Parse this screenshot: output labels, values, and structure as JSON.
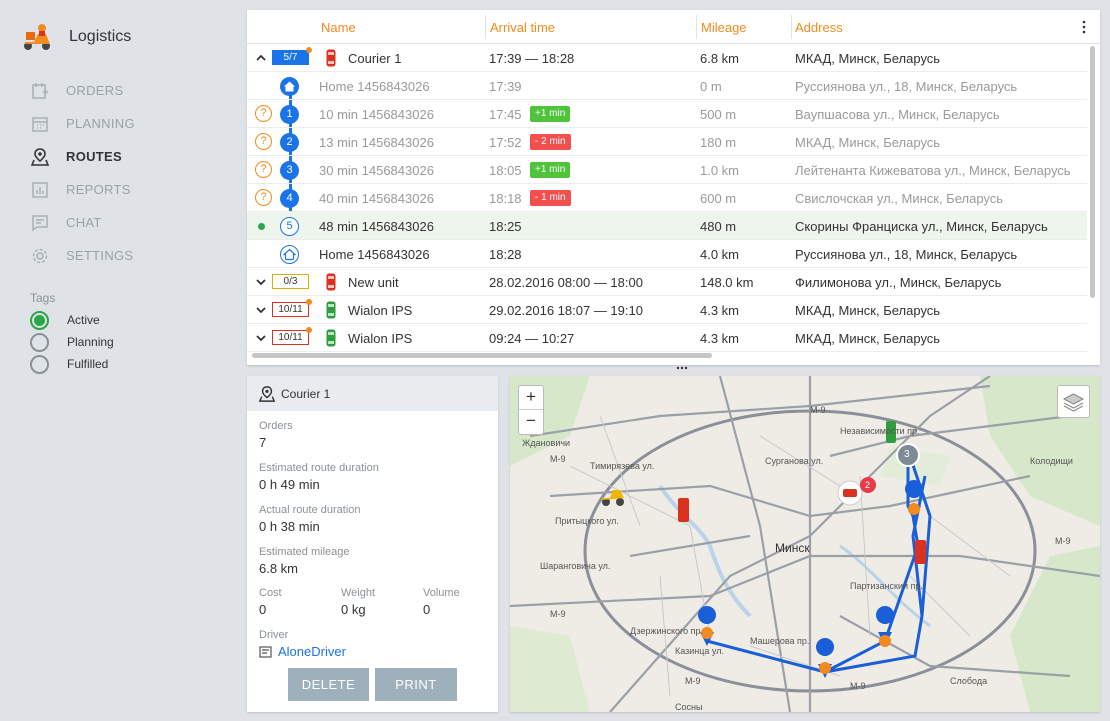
{
  "app": {
    "title": "Logistics"
  },
  "nav": [
    {
      "label": "ORDERS",
      "icon": "orders-icon",
      "active": false
    },
    {
      "label": "PLANNING",
      "icon": "calendar-icon",
      "active": false
    },
    {
      "label": "ROUTES",
      "icon": "route-pin-icon",
      "active": true
    },
    {
      "label": "REPORTS",
      "icon": "chart-icon",
      "active": false
    },
    {
      "label": "CHAT",
      "icon": "chat-icon",
      "active": false
    },
    {
      "label": "SETTINGS",
      "icon": "gear-icon",
      "active": false
    }
  ],
  "tags": {
    "title": "Tags",
    "items": [
      {
        "label": "Active",
        "checked": true
      },
      {
        "label": "Planning",
        "checked": false
      },
      {
        "label": "Fulfilled",
        "checked": false
      }
    ]
  },
  "table": {
    "columns": {
      "name": "Name",
      "arrival": "Arrival time",
      "mileage": "Mileage",
      "address": "Address"
    },
    "rows": [
      {
        "kind": "unit",
        "expanded": true,
        "badge": "5/7",
        "badge_style": "blue",
        "badge_dot": true,
        "unit_color": "#d9321f",
        "name": "Courier 1",
        "arrival": "17:39 — 18:28",
        "mileage": "6.8 km",
        "address": "МКАД, Минск, Беларусь"
      },
      {
        "kind": "stop",
        "step": "home",
        "name": "Home 1456843026",
        "arrival": "17:39",
        "mileage": "0 m",
        "address": "Руссиянова ул., 18, Минск, Беларусь"
      },
      {
        "kind": "stop",
        "step": "1",
        "question": true,
        "name": "10 min 1456843026",
        "arrival": "17:45",
        "delta": "+1 min",
        "delta_style": "g",
        "mileage": "500 m",
        "address": "Ваупшасова ул., Минск, Беларусь"
      },
      {
        "kind": "stop",
        "step": "2",
        "question": true,
        "name": "13 min 1456843026",
        "arrival": "17:52",
        "delta": "- 2 min",
        "delta_style": "r",
        "mileage": "180 m",
        "address": "МКАД, Минск, Беларусь"
      },
      {
        "kind": "stop",
        "step": "3",
        "question": true,
        "name": "30 min 1456843026",
        "arrival": "18:05",
        "delta": "+1 min",
        "delta_style": "g",
        "mileage": "1.0 km",
        "address": "Лейтенанта Кижеватова ул., Минск, Беларусь"
      },
      {
        "kind": "stop",
        "step": "4",
        "question": true,
        "name": "40 min 1456843026",
        "arrival": "18:18",
        "delta": "- 1 min",
        "delta_style": "r",
        "mileage": "600 m",
        "address": "Свислочская ул., Минск, Беларусь"
      },
      {
        "kind": "stop",
        "step": "5",
        "outline": true,
        "selected": true,
        "strong": true,
        "name": "48 min 1456843026",
        "arrival": "18:25",
        "mileage": "480 m",
        "address": "Скорины Франциска ул., Минск, Беларусь"
      },
      {
        "kind": "stop",
        "step": "home-end",
        "strong": true,
        "name": "Home 1456843026",
        "arrival": "18:28",
        "mileage": "4.0 km",
        "address": "Руссиянова ул., 18, Минск, Беларусь"
      },
      {
        "kind": "unit",
        "expanded": false,
        "badge": "0/3",
        "badge_style": "yellow",
        "badge_dot": false,
        "unit_color": "#d9321f",
        "name": "New unit",
        "arrival": "28.02.2016 08:00 — 18:00",
        "mileage": "148.0 km",
        "address": "Филимонова ул., Минск, Беларусь"
      },
      {
        "kind": "unit",
        "expanded": false,
        "badge": "10/11",
        "badge_style": "red",
        "badge_dot": true,
        "unit_color": "#2e9e3f",
        "name": "Wialon IPS",
        "arrival": "29.02.2016 18:07 — 19:10",
        "mileage": "4.3 km",
        "address": "МКАД, Минск, Беларусь"
      },
      {
        "kind": "unit",
        "expanded": false,
        "badge": "10/11",
        "badge_style": "red",
        "badge_dot": true,
        "unit_color": "#2e9e3f",
        "name": "Wialon IPS",
        "arrival": "09:24 — 10:27",
        "mileage": "4.3 km",
        "address": "МКАД, Минск, Беларусь"
      }
    ]
  },
  "detail": {
    "title": "Courier 1",
    "orders_label": "Orders",
    "orders": "7",
    "est_duration_label": "Estimated route duration",
    "est_duration": "0 h 49 min",
    "act_duration_label": "Actual route duration",
    "act_duration": "0 h 38 min",
    "est_mileage_label": "Estimated mileage",
    "est_mileage": "6.8 km",
    "cost_label": "Cost",
    "cost": "0",
    "weight_label": "Weight",
    "weight": "0 kg",
    "volume_label": "Volume",
    "volume": "0",
    "driver_label": "Driver",
    "driver": "AloneDriver",
    "delete_label": "DELETE",
    "print_label": "PRINT"
  },
  "map": {
    "zoom_in": "+",
    "zoom_out": "−",
    "city": "Минск",
    "labels": [
      "Ждановичи",
      "Колодищи",
      "M-9",
      "M-9",
      "M-9",
      "M-9",
      "M-9",
      "M-9",
      "Тимирязева ул.",
      "Сурганова ул.",
      "Независимости пр.",
      "Притыцкого ул.",
      "Шаранговича ул.",
      "Партизанский пр.",
      "Дзержинского пр.",
      "Казинца ул.",
      "Машерова пр.",
      "Слобода",
      "Сосны"
    ],
    "cluster_count": "3",
    "alert_count": "2",
    "route_color": "#1a5fd8"
  }
}
